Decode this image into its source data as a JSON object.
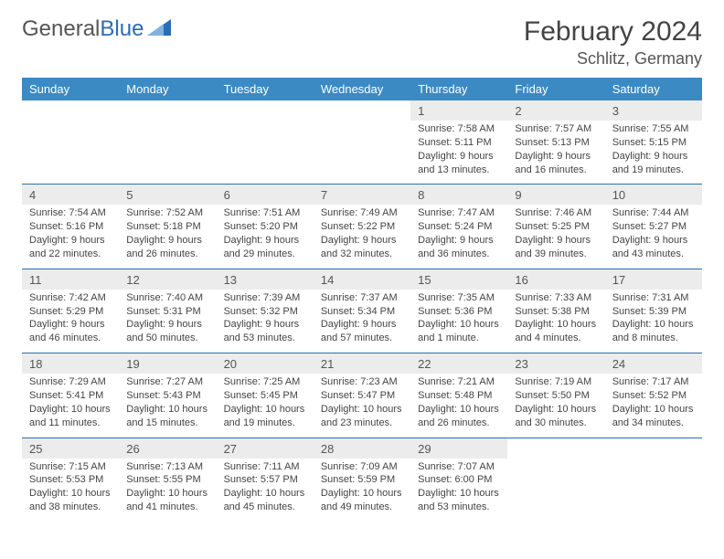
{
  "logo": {
    "text1": "General",
    "text2": "Blue"
  },
  "title": "February 2024",
  "location": "Schlitz, Germany",
  "colors": {
    "header_bg": "#3b8ac4",
    "header_text": "#ffffff",
    "date_bg": "#ececec",
    "row_border": "#2a6db5",
    "body_text": "#444444",
    "logo_gray": "#555555",
    "logo_blue": "#2a6db5"
  },
  "dow": [
    "Sunday",
    "Monday",
    "Tuesday",
    "Wednesday",
    "Thursday",
    "Friday",
    "Saturday"
  ],
  "weeks": [
    [
      null,
      null,
      null,
      null,
      {
        "d": "1",
        "sr": "Sunrise: 7:58 AM",
        "ss": "Sunset: 5:11 PM",
        "dl1": "Daylight: 9 hours",
        "dl2": "and 13 minutes."
      },
      {
        "d": "2",
        "sr": "Sunrise: 7:57 AM",
        "ss": "Sunset: 5:13 PM",
        "dl1": "Daylight: 9 hours",
        "dl2": "and 16 minutes."
      },
      {
        "d": "3",
        "sr": "Sunrise: 7:55 AM",
        "ss": "Sunset: 5:15 PM",
        "dl1": "Daylight: 9 hours",
        "dl2": "and 19 minutes."
      }
    ],
    [
      {
        "d": "4",
        "sr": "Sunrise: 7:54 AM",
        "ss": "Sunset: 5:16 PM",
        "dl1": "Daylight: 9 hours",
        "dl2": "and 22 minutes."
      },
      {
        "d": "5",
        "sr": "Sunrise: 7:52 AM",
        "ss": "Sunset: 5:18 PM",
        "dl1": "Daylight: 9 hours",
        "dl2": "and 26 minutes."
      },
      {
        "d": "6",
        "sr": "Sunrise: 7:51 AM",
        "ss": "Sunset: 5:20 PM",
        "dl1": "Daylight: 9 hours",
        "dl2": "and 29 minutes."
      },
      {
        "d": "7",
        "sr": "Sunrise: 7:49 AM",
        "ss": "Sunset: 5:22 PM",
        "dl1": "Daylight: 9 hours",
        "dl2": "and 32 minutes."
      },
      {
        "d": "8",
        "sr": "Sunrise: 7:47 AM",
        "ss": "Sunset: 5:24 PM",
        "dl1": "Daylight: 9 hours",
        "dl2": "and 36 minutes."
      },
      {
        "d": "9",
        "sr": "Sunrise: 7:46 AM",
        "ss": "Sunset: 5:25 PM",
        "dl1": "Daylight: 9 hours",
        "dl2": "and 39 minutes."
      },
      {
        "d": "10",
        "sr": "Sunrise: 7:44 AM",
        "ss": "Sunset: 5:27 PM",
        "dl1": "Daylight: 9 hours",
        "dl2": "and 43 minutes."
      }
    ],
    [
      {
        "d": "11",
        "sr": "Sunrise: 7:42 AM",
        "ss": "Sunset: 5:29 PM",
        "dl1": "Daylight: 9 hours",
        "dl2": "and 46 minutes."
      },
      {
        "d": "12",
        "sr": "Sunrise: 7:40 AM",
        "ss": "Sunset: 5:31 PM",
        "dl1": "Daylight: 9 hours",
        "dl2": "and 50 minutes."
      },
      {
        "d": "13",
        "sr": "Sunrise: 7:39 AM",
        "ss": "Sunset: 5:32 PM",
        "dl1": "Daylight: 9 hours",
        "dl2": "and 53 minutes."
      },
      {
        "d": "14",
        "sr": "Sunrise: 7:37 AM",
        "ss": "Sunset: 5:34 PM",
        "dl1": "Daylight: 9 hours",
        "dl2": "and 57 minutes."
      },
      {
        "d": "15",
        "sr": "Sunrise: 7:35 AM",
        "ss": "Sunset: 5:36 PM",
        "dl1": "Daylight: 10 hours",
        "dl2": "and 1 minute."
      },
      {
        "d": "16",
        "sr": "Sunrise: 7:33 AM",
        "ss": "Sunset: 5:38 PM",
        "dl1": "Daylight: 10 hours",
        "dl2": "and 4 minutes."
      },
      {
        "d": "17",
        "sr": "Sunrise: 7:31 AM",
        "ss": "Sunset: 5:39 PM",
        "dl1": "Daylight: 10 hours",
        "dl2": "and 8 minutes."
      }
    ],
    [
      {
        "d": "18",
        "sr": "Sunrise: 7:29 AM",
        "ss": "Sunset: 5:41 PM",
        "dl1": "Daylight: 10 hours",
        "dl2": "and 11 minutes."
      },
      {
        "d": "19",
        "sr": "Sunrise: 7:27 AM",
        "ss": "Sunset: 5:43 PM",
        "dl1": "Daylight: 10 hours",
        "dl2": "and 15 minutes."
      },
      {
        "d": "20",
        "sr": "Sunrise: 7:25 AM",
        "ss": "Sunset: 5:45 PM",
        "dl1": "Daylight: 10 hours",
        "dl2": "and 19 minutes."
      },
      {
        "d": "21",
        "sr": "Sunrise: 7:23 AM",
        "ss": "Sunset: 5:47 PM",
        "dl1": "Daylight: 10 hours",
        "dl2": "and 23 minutes."
      },
      {
        "d": "22",
        "sr": "Sunrise: 7:21 AM",
        "ss": "Sunset: 5:48 PM",
        "dl1": "Daylight: 10 hours",
        "dl2": "and 26 minutes."
      },
      {
        "d": "23",
        "sr": "Sunrise: 7:19 AM",
        "ss": "Sunset: 5:50 PM",
        "dl1": "Daylight: 10 hours",
        "dl2": "and 30 minutes."
      },
      {
        "d": "24",
        "sr": "Sunrise: 7:17 AM",
        "ss": "Sunset: 5:52 PM",
        "dl1": "Daylight: 10 hours",
        "dl2": "and 34 minutes."
      }
    ],
    [
      {
        "d": "25",
        "sr": "Sunrise: 7:15 AM",
        "ss": "Sunset: 5:53 PM",
        "dl1": "Daylight: 10 hours",
        "dl2": "and 38 minutes."
      },
      {
        "d": "26",
        "sr": "Sunrise: 7:13 AM",
        "ss": "Sunset: 5:55 PM",
        "dl1": "Daylight: 10 hours",
        "dl2": "and 41 minutes."
      },
      {
        "d": "27",
        "sr": "Sunrise: 7:11 AM",
        "ss": "Sunset: 5:57 PM",
        "dl1": "Daylight: 10 hours",
        "dl2": "and 45 minutes."
      },
      {
        "d": "28",
        "sr": "Sunrise: 7:09 AM",
        "ss": "Sunset: 5:59 PM",
        "dl1": "Daylight: 10 hours",
        "dl2": "and 49 minutes."
      },
      {
        "d": "29",
        "sr": "Sunrise: 7:07 AM",
        "ss": "Sunset: 6:00 PM",
        "dl1": "Daylight: 10 hours",
        "dl2": "and 53 minutes."
      },
      null,
      null
    ]
  ]
}
